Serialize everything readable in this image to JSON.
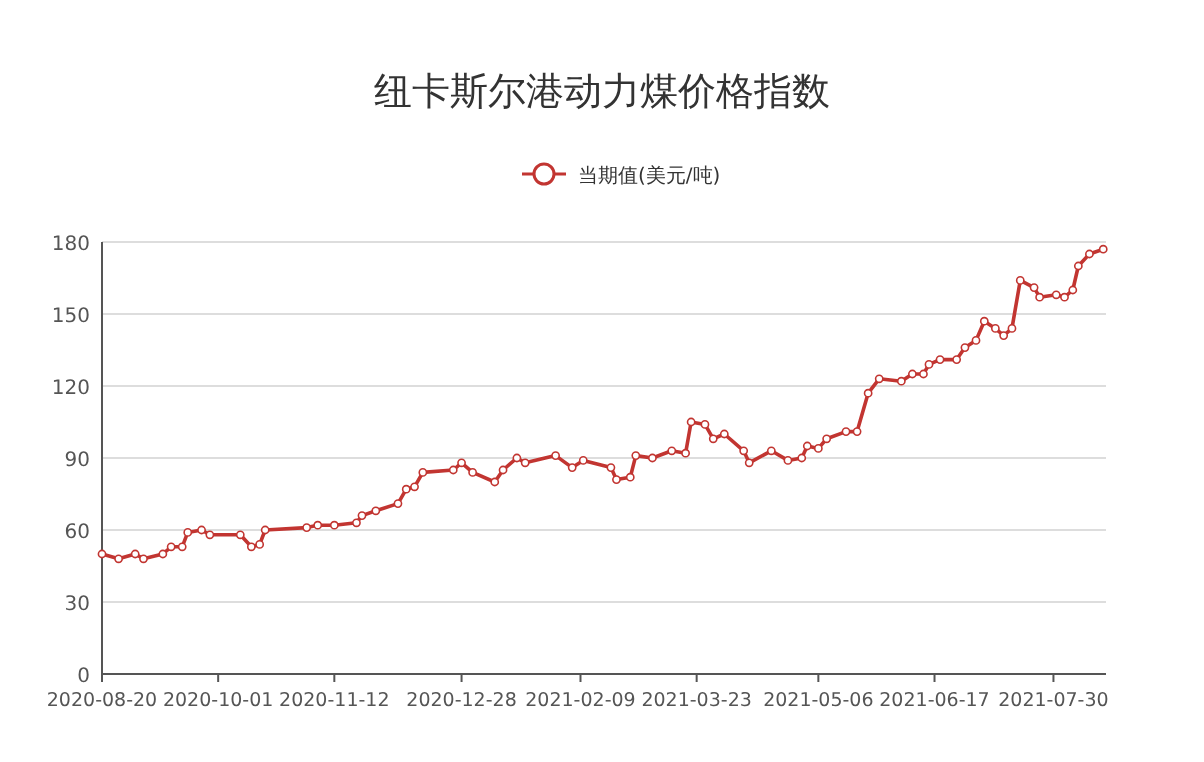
{
  "chart_data": {
    "type": "line",
    "title": "纽卡斯尔港动力煤价格指数",
    "legend": "top",
    "grid": "y",
    "marker": "circle",
    "x": [
      "2020-08-20",
      "2020-08-26",
      "2020-09-01",
      "2020-09-04",
      "2020-09-11",
      "2020-09-14",
      "2020-09-18",
      "2020-09-20",
      "2020-09-25",
      "2020-09-28",
      "2020-10-09",
      "2020-10-13",
      "2020-10-16",
      "2020-10-18",
      "2020-11-02",
      "2020-11-06",
      "2020-11-12",
      "2020-11-20",
      "2020-11-22",
      "2020-11-27",
      "2020-12-05",
      "2020-12-08",
      "2020-12-11",
      "2020-12-14",
      "2020-12-25",
      "2020-12-28",
      "2021-01-01",
      "2021-01-09",
      "2021-01-12",
      "2021-01-17",
      "2021-01-20",
      "2021-01-31",
      "2021-02-06",
      "2021-02-10",
      "2021-02-20",
      "2021-02-22",
      "2021-02-27",
      "2021-03-01",
      "2021-03-07",
      "2021-03-14",
      "2021-03-19",
      "2021-03-21",
      "2021-03-26",
      "2021-03-29",
      "2021-04-02",
      "2021-04-09",
      "2021-04-11",
      "2021-04-19",
      "2021-04-25",
      "2021-04-30",
      "2021-05-02",
      "2021-05-06",
      "2021-05-09",
      "2021-05-16",
      "2021-05-20",
      "2021-05-24",
      "2021-05-28",
      "2021-06-05",
      "2021-06-09",
      "2021-06-13",
      "2021-06-15",
      "2021-06-19",
      "2021-06-25",
      "2021-06-28",
      "2021-07-02",
      "2021-07-05",
      "2021-07-09",
      "2021-07-12",
      "2021-07-15",
      "2021-07-18",
      "2021-07-23",
      "2021-07-25",
      "2021-07-31",
      "2021-08-03",
      "2021-08-06",
      "2021-08-08",
      "2021-08-12",
      "2021-08-17"
    ],
    "series": [
      {
        "name": "当期值(美元/吨)",
        "color": "#c23531",
        "values": [
          50,
          48,
          50,
          48,
          50,
          53,
          53,
          59,
          60,
          58,
          58,
          53,
          54,
          60,
          61,
          62,
          62,
          63,
          66,
          68,
          71,
          77,
          78,
          84,
          85,
          88,
          84,
          80,
          85,
          90,
          88,
          91,
          86,
          89,
          86,
          81,
          82,
          91,
          90,
          93,
          92,
          105,
          104,
          98,
          100,
          93,
          88,
          93,
          89,
          90,
          95,
          94,
          98,
          101,
          101,
          117,
          123,
          122,
          125,
          125,
          129,
          131,
          131,
          136,
          139,
          147,
          144,
          141,
          144,
          164,
          161,
          157,
          158,
          157,
          160,
          170,
          175,
          177
        ]
      }
    ],
    "xlim": [
      "2020-08-20",
      "2021-08-18"
    ],
    "xticks": [
      "2020-08-20",
      "2020-10-01",
      "2020-11-12",
      "2020-12-28",
      "2021-02-09",
      "2021-03-23",
      "2021-05-06",
      "2021-06-17",
      "2021-07-30"
    ],
    "ylim": [
      0,
      180
    ],
    "yticks": [
      0,
      30,
      60,
      90,
      120,
      150,
      180
    ]
  }
}
